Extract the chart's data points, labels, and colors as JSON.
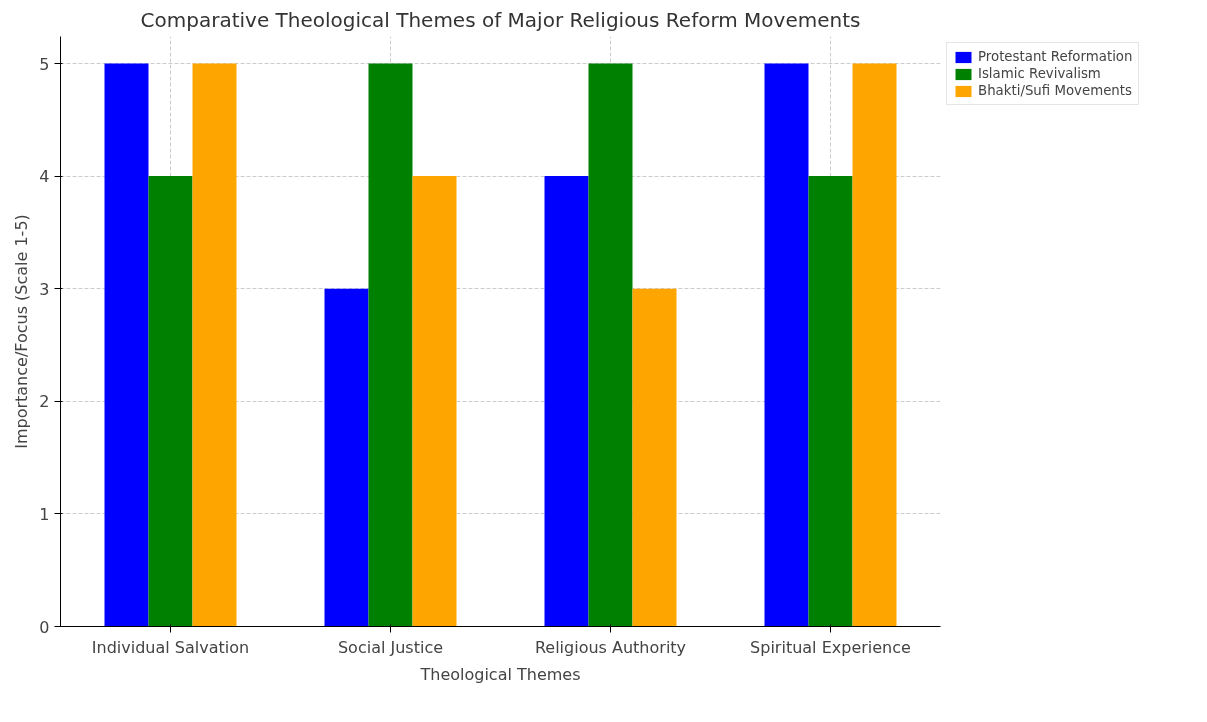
{
  "chart_data": {
    "type": "bar",
    "title": "Comparative Theological Themes of Major Religious Reform Movements",
    "xlabel": "Theological Themes",
    "ylabel": "Importance/Focus (Scale 1-5)",
    "categories": [
      "Individual Salvation",
      "Social Justice",
      "Religious Authority",
      "Spiritual Experience"
    ],
    "series": [
      {
        "name": "Protestant Reformation",
        "color": "#0000ff",
        "values": [
          5,
          3,
          4,
          5
        ]
      },
      {
        "name": "Islamic Revivalism",
        "color": "#008000",
        "values": [
          4,
          5,
          5,
          4
        ]
      },
      {
        "name": "Bhakti/Sufi Movements",
        "color": "#ffa500",
        "values": [
          5,
          4,
          3,
          5
        ]
      }
    ],
    "ylim": [
      0,
      5.24
    ],
    "yticks": [
      0,
      1,
      2,
      3,
      4,
      5
    ],
    "grid": true,
    "legend": "top right"
  }
}
